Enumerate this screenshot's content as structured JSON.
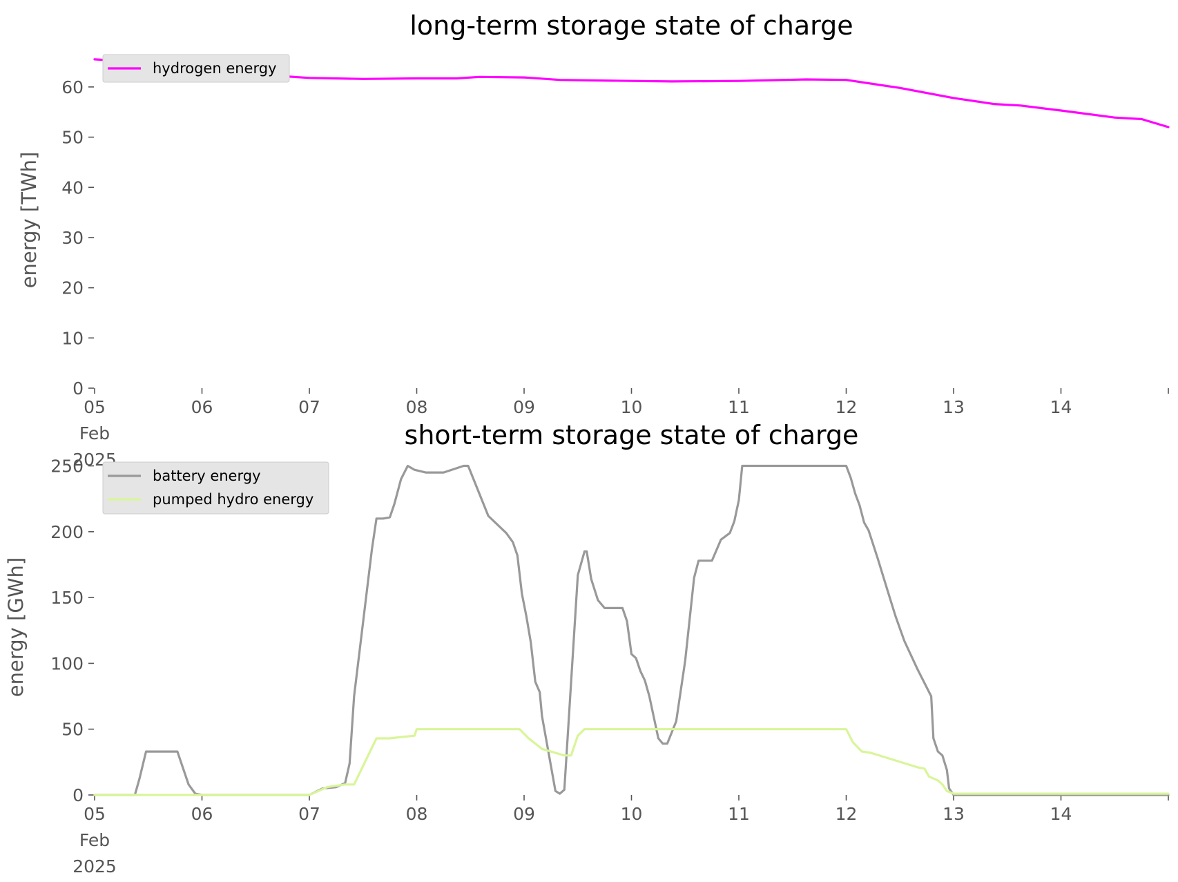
{
  "chart_data": [
    {
      "type": "line",
      "title": "long-term storage state of charge",
      "ylabel": "energy [TWh]",
      "xlabel": "",
      "xlim": [
        "2025-02-05",
        "2025-02-15"
      ],
      "ylim": [
        0,
        67
      ],
      "yticks": [
        0,
        10,
        20,
        30,
        40,
        50,
        60
      ],
      "xticks": [
        {
          "date": "2025-02-05",
          "lines": [
            "05",
            "Feb",
            "2025"
          ]
        },
        {
          "date": "2025-02-06",
          "lines": [
            "06"
          ]
        },
        {
          "date": "2025-02-07",
          "lines": [
            "07"
          ]
        },
        {
          "date": "2025-02-08",
          "lines": [
            "08"
          ]
        },
        {
          "date": "2025-02-09",
          "lines": [
            "09"
          ]
        },
        {
          "date": "2025-02-10",
          "lines": [
            "10"
          ]
        },
        {
          "date": "2025-02-11",
          "lines": [
            "11"
          ]
        },
        {
          "date": "2025-02-12",
          "lines": [
            "12"
          ]
        },
        {
          "date": "2025-02-13",
          "lines": [
            "13"
          ]
        },
        {
          "date": "2025-02-14",
          "lines": [
            "14"
          ]
        },
        {
          "date": "2025-02-15",
          "lines": [
            ""
          ]
        }
      ],
      "legend": "top-left",
      "grid": false,
      "series": [
        {
          "name": "hydrogen energy",
          "color": "#ff00ff",
          "x": [
            "2025-02-05T00:00",
            "2025-02-05T12:00",
            "2025-02-06T00:00",
            "2025-02-06T12:00",
            "2025-02-07T00:00",
            "2025-02-07T12:00",
            "2025-02-08T00:00",
            "2025-02-08T09:00",
            "2025-02-08T14:00",
            "2025-02-09T00:00",
            "2025-02-09T08:00",
            "2025-02-10T00:00",
            "2025-02-10T09:00",
            "2025-02-11T00:00",
            "2025-02-11T15:00",
            "2025-02-12T00:00",
            "2025-02-12T12:00",
            "2025-02-13T00:00",
            "2025-02-13T09:00",
            "2025-02-13T15:00",
            "2025-02-14T00:00",
            "2025-02-14T12:00",
            "2025-02-14T18:00",
            "2025-02-15T00:00"
          ],
          "values": [
            65.5,
            64.8,
            63.8,
            62.5,
            61.8,
            61.6,
            61.7,
            61.7,
            62.0,
            61.9,
            61.4,
            61.2,
            61.1,
            61.2,
            61.5,
            61.4,
            59.8,
            57.8,
            56.6,
            56.3,
            55.3,
            53.9,
            53.6,
            52.0
          ]
        }
      ]
    },
    {
      "type": "line",
      "title": "short-term storage state of charge",
      "ylabel": "energy [GWh]",
      "xlabel": "",
      "xlim": [
        "2025-02-05",
        "2025-02-15"
      ],
      "ylim": [
        0,
        255
      ],
      "yticks": [
        0,
        50,
        100,
        150,
        200,
        250
      ],
      "xticks": [
        {
          "date": "2025-02-05",
          "lines": [
            "05",
            "Feb",
            "2025"
          ]
        },
        {
          "date": "2025-02-06",
          "lines": [
            "06"
          ]
        },
        {
          "date": "2025-02-07",
          "lines": [
            "07"
          ]
        },
        {
          "date": "2025-02-08",
          "lines": [
            "08"
          ]
        },
        {
          "date": "2025-02-09",
          "lines": [
            "09"
          ]
        },
        {
          "date": "2025-02-10",
          "lines": [
            "10"
          ]
        },
        {
          "date": "2025-02-11",
          "lines": [
            "11"
          ]
        },
        {
          "date": "2025-02-12",
          "lines": [
            "12"
          ]
        },
        {
          "date": "2025-02-13",
          "lines": [
            "13"
          ]
        },
        {
          "date": "2025-02-14",
          "lines": [
            "14"
          ]
        },
        {
          "date": "2025-02-15",
          "lines": [
            ""
          ]
        }
      ],
      "legend": "top-left",
      "grid": false,
      "series": [
        {
          "name": "battery energy",
          "color": "#999999",
          "x": [
            "2025-02-05T00:00",
            "2025-02-05T09:00",
            "2025-02-05T10:00",
            "2025-02-05T11:30",
            "2025-02-05T13:00",
            "2025-02-05T18:30",
            "2025-02-05T21:00",
            "2025-02-05T22:30",
            "2025-02-06T00:00",
            "2025-02-07T00:00",
            "2025-02-07T03:00",
            "2025-02-07T06:00",
            "2025-02-07T08:00",
            "2025-02-07T09:00",
            "2025-02-07T10:00",
            "2025-02-07T14:00",
            "2025-02-07T15:00",
            "2025-02-07T16:30",
            "2025-02-07T18:00",
            "2025-02-07T19:00",
            "2025-02-07T20:30",
            "2025-02-07T22:00",
            "2025-02-07T23:30",
            "2025-02-08T02:00",
            "2025-02-08T06:00",
            "2025-02-08T10:30",
            "2025-02-08T11:30",
            "2025-02-08T16:00",
            "2025-02-08T20:00",
            "2025-02-08T21:30",
            "2025-02-08T22:30",
            "2025-02-08T23:30",
            "2025-02-09T00:30",
            "2025-02-09T01:30",
            "2025-02-09T02:30",
            "2025-02-09T03:30",
            "2025-02-09T04:00",
            "2025-02-09T07:00",
            "2025-02-09T08:00",
            "2025-02-09T09:00",
            "2025-02-09T12:00",
            "2025-02-09T13:30",
            "2025-02-09T14:00",
            "2025-02-09T15:00",
            "2025-02-09T16:30",
            "2025-02-09T18:00",
            "2025-02-09T19:30",
            "2025-02-09T22:00",
            "2025-02-09T23:00",
            "2025-02-10T00:00",
            "2025-02-10T01:00",
            "2025-02-10T02:00",
            "2025-02-10T03:00",
            "2025-02-10T04:00",
            "2025-02-10T05:00",
            "2025-02-10T06:00",
            "2025-02-10T07:00",
            "2025-02-10T08:00",
            "2025-02-10T10:00",
            "2025-02-10T12:00",
            "2025-02-10T14:00",
            "2025-02-10T15:00",
            "2025-02-10T16:00",
            "2025-02-10T18:00",
            "2025-02-10T20:00",
            "2025-02-10T22:00",
            "2025-02-10T23:00",
            "2025-02-11T00:00",
            "2025-02-11T00:45",
            "2025-02-11T01:30",
            "2025-02-11T03:00",
            "2025-02-11T06:00",
            "2025-02-12T00:00",
            "2025-02-12T01:00",
            "2025-02-12T02:00",
            "2025-02-12T03:00",
            "2025-02-12T04:00",
            "2025-02-12T05:00",
            "2025-02-12T07:00",
            "2025-02-12T09:00",
            "2025-02-12T11:00",
            "2025-02-12T13:00",
            "2025-02-12T16:00",
            "2025-02-12T19:00",
            "2025-02-12T19:30",
            "2025-02-12T20:30",
            "2025-02-12T21:30",
            "2025-02-12T22:30",
            "2025-02-12T23:00",
            "2025-02-13T00:00",
            "2025-02-14T00:00",
            "2025-02-15T00:00"
          ],
          "values": [
            0,
            0,
            12,
            33,
            33,
            33,
            8,
            1,
            0,
            0,
            5,
            6,
            9,
            24,
            75,
            187,
            210,
            210,
            211,
            221,
            240,
            250,
            247,
            245,
            245,
            250,
            250,
            212,
            199,
            192,
            182,
            153,
            136,
            116,
            86,
            78,
            60,
            3,
            1,
            4,
            167,
            185,
            185,
            164,
            148,
            142,
            142,
            142,
            132,
            107,
            104,
            94,
            87,
            75,
            59,
            43,
            39,
            39,
            56,
            102,
            165,
            178,
            178,
            178,
            194,
            199,
            208,
            224,
            250,
            250,
            250,
            250,
            250,
            241,
            229,
            220,
            207,
            201,
            180,
            158,
            136,
            117,
            95,
            75,
            43,
            33,
            30,
            19,
            5,
            0,
            0,
            0
          ]
        },
        {
          "name": "pumped hydro energy",
          "color": "#d9f599",
          "x": [
            "2025-02-05T00:00",
            "2025-02-07T00:00",
            "2025-02-07T04:00",
            "2025-02-07T08:00",
            "2025-02-07T10:00",
            "2025-02-07T15:00",
            "2025-02-07T18:00",
            "2025-02-07T20:30",
            "2025-02-07T23:30",
            "2025-02-08T00:00",
            "2025-02-08T23:00",
            "2025-02-09T01:00",
            "2025-02-09T04:00",
            "2025-02-09T09:00",
            "2025-02-09T10:30",
            "2025-02-09T12:00",
            "2025-02-09T13:30",
            "2025-02-09T15:00",
            "2025-02-12T00:00",
            "2025-02-12T01:30",
            "2025-02-12T03:30",
            "2025-02-12T05:30",
            "2025-02-12T16:00",
            "2025-02-12T17:30",
            "2025-02-12T18:30",
            "2025-02-12T20:30",
            "2025-02-12T21:30",
            "2025-02-12T22:30",
            "2025-02-13T00:00",
            "2025-02-15T00:00"
          ],
          "values": [
            0,
            0,
            6,
            8,
            8,
            43,
            43,
            44,
            45,
            50,
            50,
            43,
            35,
            30,
            30,
            45,
            50,
            50,
            50,
            40,
            33,
            32,
            21,
            20,
            14,
            11,
            8,
            3,
            1,
            1
          ]
        }
      ]
    }
  ]
}
